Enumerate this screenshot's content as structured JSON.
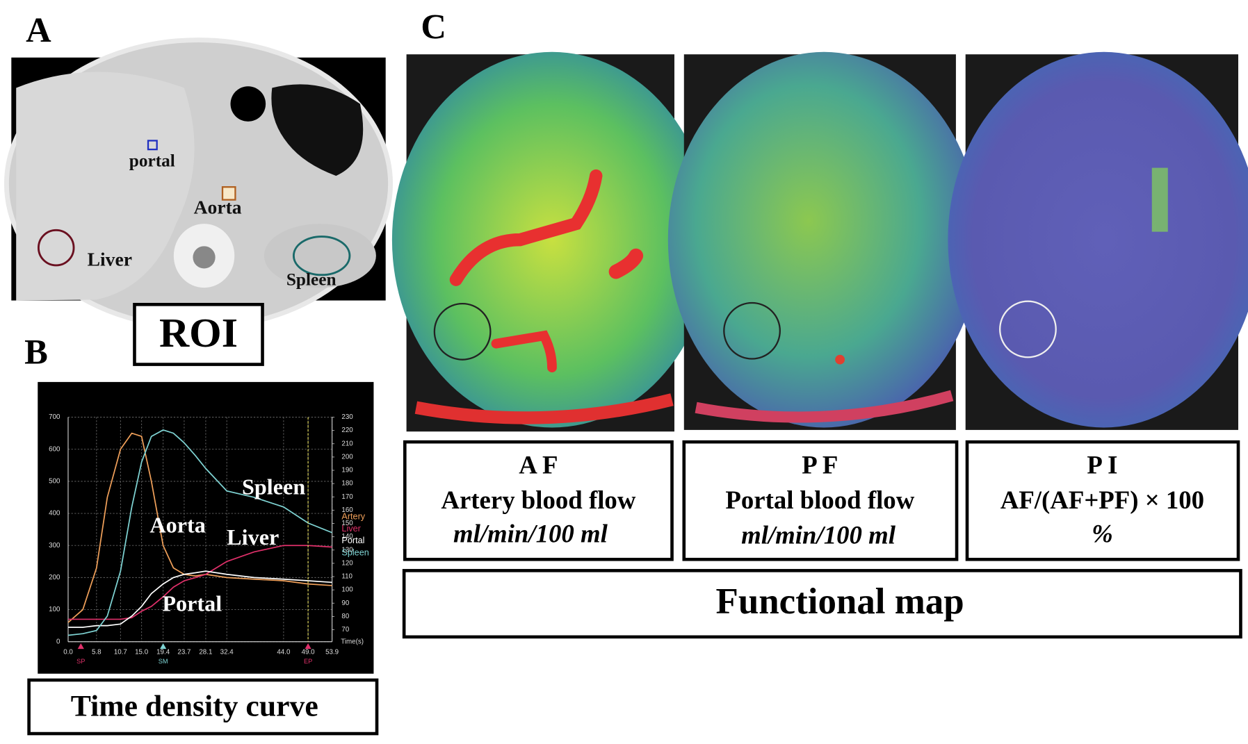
{
  "panel_a": {
    "label": "A",
    "rois": [
      "portal",
      "Aorta",
      "Liver",
      "Spleen"
    ],
    "caption": "ROI"
  },
  "panel_b": {
    "label": "B",
    "caption": "Time density curve"
  },
  "chart_data": {
    "type": "line",
    "x_label": "Time(s)",
    "x": [
      0,
      3,
      5.8,
      8,
      10.7,
      13,
      15,
      17,
      19.4,
      21.5,
      23.7,
      26,
      28.1,
      32.4,
      38,
      44,
      49,
      53.9
    ],
    "xlim": [
      0,
      53.9
    ],
    "xticks": [
      {
        "value": 0,
        "label": "0.0"
      },
      5.8,
      10.7,
      {
        "value": 15,
        "label": "15.0"
      },
      19.4,
      23.7,
      28.1,
      32.4,
      {
        "value": 44,
        "label": "44.0"
      },
      {
        "value": 49,
        "label": "49.0"
      },
      53.9
    ],
    "ylim": [
      0,
      700
    ],
    "yticks": [
      0,
      100,
      200,
      300,
      400,
      500,
      600,
      700
    ],
    "y2lim": [
      61,
      230
    ],
    "y2ticks": [
      70,
      80,
      90,
      100,
      110,
      120,
      130,
      140,
      150,
      160,
      170,
      180,
      190,
      200,
      210,
      220,
      230
    ],
    "grid": true,
    "series": [
      {
        "name": "Artery",
        "color": "#f0a05a",
        "values": [
          60,
          100,
          230,
          450,
          600,
          650,
          640,
          500,
          300,
          230,
          210,
          205,
          210,
          200,
          195,
          190,
          180,
          175
        ]
      },
      {
        "name": "Liver",
        "color": "#e0306a",
        "values": [
          70,
          70,
          70,
          70,
          70,
          75,
          95,
          110,
          140,
          170,
          190,
          200,
          210,
          250,
          280,
          300,
          300,
          295
        ]
      },
      {
        "name": "Portal",
        "color": "#ffffff",
        "values": [
          45,
          45,
          50,
          50,
          55,
          80,
          110,
          150,
          180,
          200,
          210,
          215,
          220,
          210,
          200,
          195,
          190,
          185
        ]
      },
      {
        "name": "Spleen",
        "color": "#7fd4d4",
        "values": [
          20,
          25,
          35,
          80,
          220,
          420,
          560,
          640,
          660,
          650,
          620,
          580,
          540,
          470,
          450,
          420,
          370,
          340
        ]
      }
    ],
    "annotations": [
      "Spleen",
      "Aorta",
      "Liver",
      "Portal"
    ],
    "markers": [
      {
        "label": "SP",
        "x": 2.6,
        "color": "#e0306a"
      },
      {
        "label": "SM",
        "x": 19.4,
        "color": "#7fd4d4"
      },
      {
        "label": "EP",
        "x": 49,
        "color": "#e0306a"
      }
    ]
  },
  "panel_c": {
    "label": "C",
    "maps": [
      {
        "abbr": "A F",
        "name": "Artery blood flow",
        "unit": "ml/min/100 ml"
      },
      {
        "abbr": "P F",
        "name": "Portal blood flow",
        "unit": "ml/min/100 ml"
      },
      {
        "abbr": "P I",
        "name": "AF/(AF+PF) × 100",
        "unit": "%"
      }
    ],
    "caption": "Functional map"
  }
}
